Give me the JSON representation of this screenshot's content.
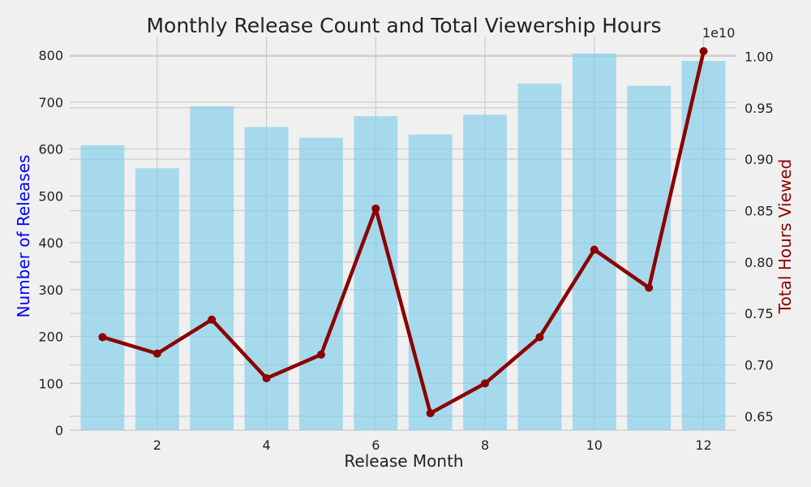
{
  "chart_data": {
    "type": "bar+line",
    "title": "Monthly Release Count and Total Viewership Hours",
    "xlabel": "Release Month",
    "ylabel_left": "Number of Releases",
    "ylabel_right": "Total Hours Viewed",
    "right_axis_multiplier": "1e10",
    "x": [
      1,
      2,
      3,
      4,
      5,
      6,
      7,
      8,
      9,
      10,
      11,
      12
    ],
    "x_ticks": [
      "2",
      "4",
      "6",
      "8",
      "10",
      "12"
    ],
    "xlim": [
      0.4,
      12.6
    ],
    "ylim_left": [
      0,
      840
    ],
    "y_ticks_left": [
      "0",
      "100",
      "200",
      "300",
      "400",
      "500",
      "600",
      "700",
      "800"
    ],
    "ylim_right": [
      0.6365,
      1.0193
    ],
    "y_ticks_right": [
      "0.65",
      "0.70",
      "0.75",
      "0.80",
      "0.85",
      "0.90",
      "0.95",
      "1.00"
    ],
    "grid": true,
    "series": [
      {
        "type": "bar",
        "axis": "left",
        "values": [
          608,
          559,
          691,
          647,
          624,
          670,
          631,
          673,
          740,
          804,
          735,
          788
        ]
      },
      {
        "type": "line",
        "axis": "right",
        "values": [
          0.727,
          0.711,
          0.744,
          0.687,
          0.71,
          0.852,
          0.653,
          0.682,
          0.727,
          0.812,
          0.775,
          1.005
        ]
      }
    ],
    "colors": {
      "bars": "#87ceeb",
      "line": "#8b0000",
      "left_label": "#0000ff",
      "right_label": "#8b0000"
    }
  }
}
